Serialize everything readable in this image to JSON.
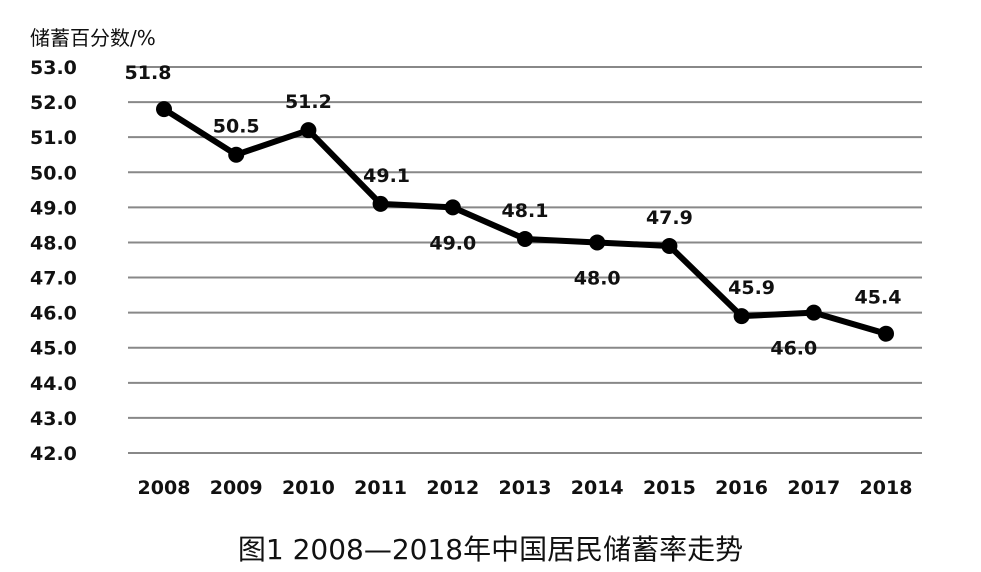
{
  "chart_data": {
    "type": "line",
    "title": "图1  2008—2018年中国居民储蓄率走势",
    "ylabel": "储蓄百分数/%",
    "xlabel": "",
    "ylim": [
      42.0,
      53.0
    ],
    "yticks": [
      "53.0",
      "52.0",
      "51.0",
      "50.0",
      "49.0",
      "48.0",
      "47.0",
      "46.0",
      "45.0",
      "44.0",
      "43.0",
      "42.0"
    ],
    "categories": [
      "2008",
      "2009",
      "2010",
      "2011",
      "2012",
      "2013",
      "2014",
      "2015",
      "2016",
      "2017",
      "2018"
    ],
    "series": [
      {
        "values": [
          51.8,
          50.5,
          51.2,
          49.1,
          49.0,
          48.1,
          48.0,
          47.9,
          45.9,
          46.0,
          45.4
        ],
        "data_labels": [
          "51.8",
          "50.5",
          "51.2",
          "49.1",
          "49.0",
          "48.1",
          "48.0",
          "47.9",
          "45.9",
          "46.0",
          "45.4"
        ]
      }
    ],
    "grid": true,
    "line_color": "#000000",
    "grid_color": "#888888"
  }
}
